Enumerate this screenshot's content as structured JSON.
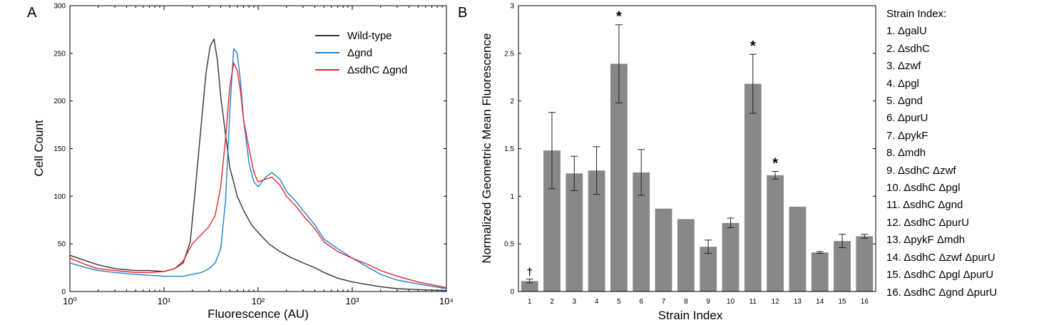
{
  "chart_data": [
    {
      "panel_label": "A",
      "type": "line",
      "xlabel": "Fluorescence (AU)",
      "ylabel": "Cell Count",
      "x_scale": "log",
      "xlim": [
        1,
        10000
      ],
      "ylim": [
        0,
        300
      ],
      "x_ticks": [
        {
          "value": 1,
          "label": "10⁰"
        },
        {
          "value": 10,
          "label": "10¹"
        },
        {
          "value": 100,
          "label": "10²"
        },
        {
          "value": 1000,
          "label": "10³"
        },
        {
          "value": 10000,
          "label": "10⁴"
        }
      ],
      "y_ticks": [
        0,
        50,
        100,
        150,
        200,
        250,
        300
      ],
      "grid": false,
      "legend_position": "top-right",
      "series": [
        {
          "name": "Wild-type",
          "color": "#333333",
          "x": [
            1,
            1.5,
            2,
            3,
            5,
            7,
            10,
            13,
            16,
            19,
            22,
            25,
            28,
            31,
            34,
            37,
            40,
            45,
            50,
            60,
            70,
            85,
            100,
            130,
            170,
            220,
            300,
            400,
            500,
            700,
            1000,
            1500,
            2000,
            3000,
            5000,
            10000
          ],
          "y": [
            38,
            32,
            28,
            24,
            22,
            22,
            21,
            24,
            30,
            52,
            118,
            178,
            230,
            258,
            265,
            242,
            205,
            165,
            130,
            100,
            85,
            70,
            62,
            50,
            42,
            36,
            30,
            25,
            20,
            14,
            10,
            7,
            5,
            3,
            2,
            1
          ]
        },
        {
          "name": "Δgnd",
          "color": "#1e7fd0",
          "x": [
            1,
            1.5,
            2,
            3,
            5,
            7,
            10,
            13,
            16,
            20,
            25,
            30,
            35,
            40,
            45,
            50,
            55,
            60,
            65,
            70,
            80,
            90,
            100,
            120,
            140,
            170,
            200,
            250,
            300,
            400,
            500,
            700,
            1000,
            1500,
            2000,
            3000,
            5000,
            10000
          ],
          "y": [
            30,
            25,
            22,
            20,
            18,
            17,
            16,
            16,
            16,
            18,
            20,
            24,
            30,
            45,
            95,
            190,
            255,
            250,
            220,
            180,
            135,
            115,
            110,
            120,
            125,
            118,
            105,
            95,
            85,
            70,
            55,
            45,
            35,
            25,
            18,
            12,
            8,
            3
          ]
        },
        {
          "name": "ΔsdhC Δgnd",
          "color": "#e8242b",
          "x": [
            1,
            1.5,
            2,
            3,
            5,
            7,
            10,
            13,
            16,
            20,
            25,
            30,
            35,
            40,
            45,
            50,
            55,
            60,
            65,
            70,
            80,
            90,
            100,
            120,
            140,
            170,
            200,
            250,
            300,
            400,
            500,
            700,
            1000,
            1500,
            2000,
            3000,
            5000,
            10000
          ],
          "y": [
            35,
            28,
            24,
            22,
            20,
            20,
            21,
            24,
            32,
            50,
            60,
            68,
            80,
            110,
            160,
            215,
            240,
            232,
            210,
            180,
            150,
            125,
            115,
            118,
            120,
            112,
            100,
            90,
            80,
            66,
            52,
            42,
            35,
            28,
            22,
            16,
            10,
            4
          ]
        }
      ]
    },
    {
      "panel_label": "B",
      "type": "bar",
      "xlabel": "Strain Index",
      "ylabel": "Normalized Geometric Mean Fluorescence",
      "ylim": [
        0,
        3
      ],
      "y_ticks": [
        0,
        0.5,
        1,
        1.5,
        2,
        2.5,
        3
      ],
      "y_tick_labels": [
        "0",
        "0.5",
        "1",
        "1.5",
        "2",
        "2.5",
        "3"
      ],
      "grid": false,
      "bar_color": "#888888",
      "categories": [
        "1",
        "2",
        "3",
        "4",
        "5",
        "6",
        "7",
        "8",
        "9",
        "10",
        "11",
        "12",
        "13",
        "14",
        "15",
        "16"
      ],
      "values": [
        0.11,
        1.48,
        1.24,
        1.27,
        2.39,
        1.25,
        0.87,
        0.76,
        0.47,
        0.72,
        2.18,
        1.22,
        0.89,
        0.41,
        0.53,
        0.58
      ],
      "errors": [
        0.02,
        0.4,
        0.18,
        0.25,
        0.41,
        0.24,
        0,
        0,
        0.07,
        0.05,
        0.31,
        0.04,
        0,
        0.01,
        0.07,
        0.02
      ],
      "markers": [
        "†",
        "",
        "",
        "",
        "*",
        "",
        "",
        "",
        "",
        "",
        "*",
        "*",
        "",
        "",
        "",
        ""
      ],
      "legend_title": "Strain Index:",
      "legend_entries": [
        "1. ΔgalU",
        "2. ΔsdhC",
        "3. Δzwf",
        "4. Δpgl",
        "5. Δgnd",
        "6. ΔpurU",
        "7. ΔpykF",
        "8. Δmdh",
        "9. ΔsdhC Δzwf",
        "10. ΔsdhC Δpgl",
        "11. ΔsdhC Δgnd",
        "12. ΔsdhC ΔpurU",
        "13. ΔpykF Δmdh",
        "14. ΔsdhC Δzwf ΔpurU",
        "15. ΔsdhC Δpgl ΔpurU",
        "16. ΔsdhC Δgnd ΔpurU"
      ]
    }
  ]
}
